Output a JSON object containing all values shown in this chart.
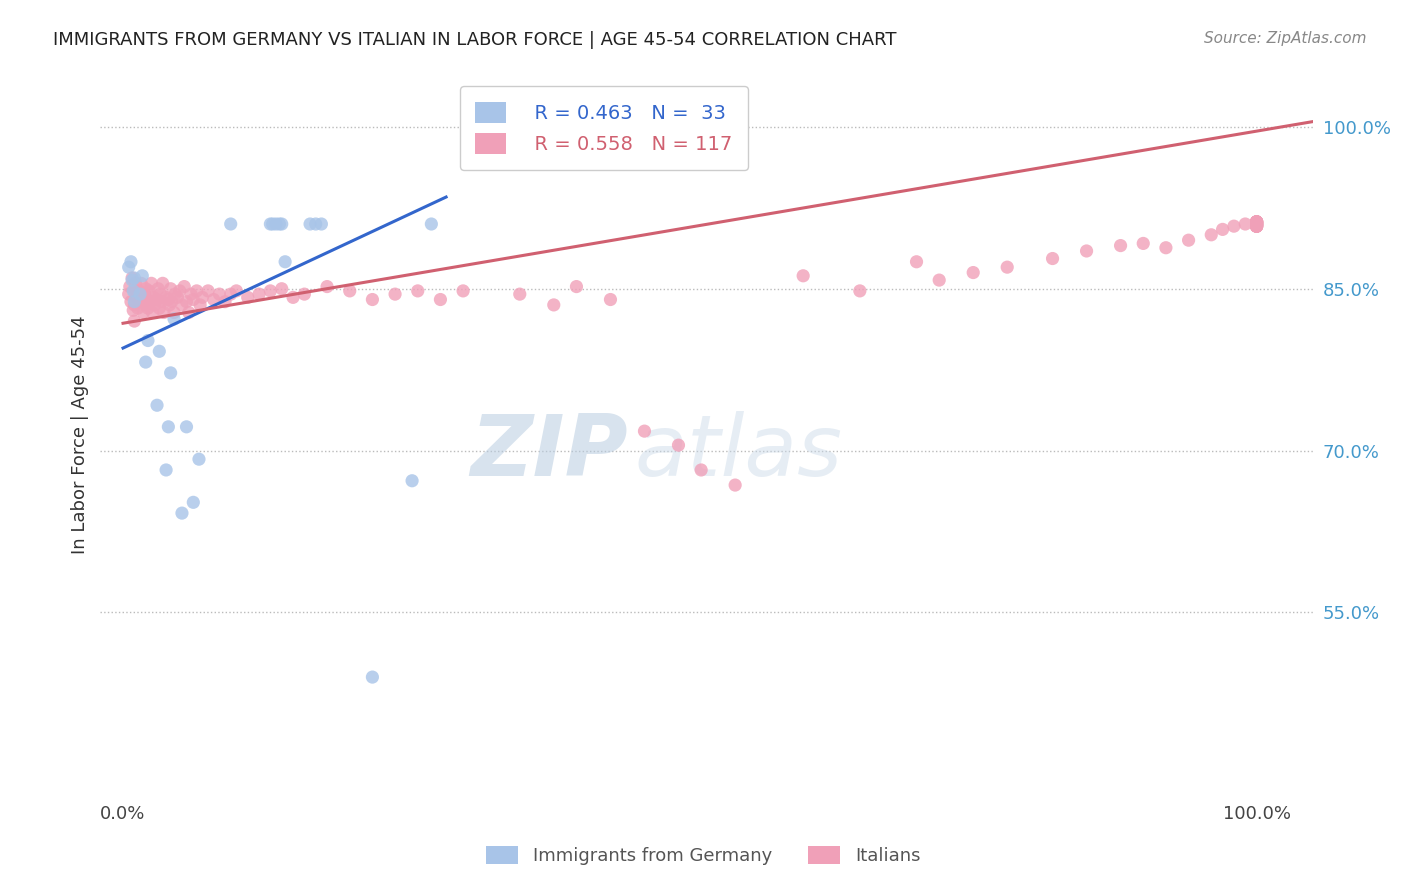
{
  "title": "IMMIGRANTS FROM GERMANY VS ITALIAN IN LABOR FORCE | AGE 45-54 CORRELATION CHART",
  "source": "Source: ZipAtlas.com",
  "ylabel": "In Labor Force | Age 45-54",
  "xlim": [
    -0.02,
    1.05
  ],
  "ylim": [
    0.38,
    1.05
  ],
  "ytick_labels": [
    "55.0%",
    "70.0%",
    "85.0%",
    "100.0%"
  ],
  "ytick_values": [
    0.55,
    0.7,
    0.85,
    1.0
  ],
  "xtick_labels": [
    "0.0%",
    "100.0%"
  ],
  "xtick_values": [
    0.0,
    1.0
  ],
  "legend_r_germany": "R = 0.463",
  "legend_n_germany": "N =  33",
  "legend_r_italian": "R = 0.558",
  "legend_n_italian": "N = 117",
  "color_germany": "#a8c4e8",
  "color_italian": "#f0a0b8",
  "trendline_color_germany": "#3366cc",
  "trendline_color_italian": "#d06070",
  "watermark_zip": "ZIP",
  "watermark_atlas": "atlas",
  "background_color": "#ffffff",
  "germany_x": [
    0.005,
    0.007,
    0.008,
    0.009,
    0.01,
    0.01,
    0.015,
    0.017,
    0.02,
    0.022,
    0.03,
    0.032,
    0.038,
    0.04,
    0.042,
    0.045,
    0.052,
    0.056,
    0.062,
    0.067,
    0.095,
    0.13,
    0.132,
    0.135,
    0.138,
    0.14,
    0.143,
    0.165,
    0.17,
    0.175,
    0.22,
    0.255,
    0.272
  ],
  "germany_y": [
    0.87,
    0.875,
    0.858,
    0.848,
    0.838,
    0.86,
    0.845,
    0.862,
    0.782,
    0.802,
    0.742,
    0.792,
    0.682,
    0.722,
    0.772,
    0.822,
    0.642,
    0.722,
    0.652,
    0.692,
    0.91,
    0.91,
    0.91,
    0.91,
    0.91,
    0.91,
    0.875,
    0.91,
    0.91,
    0.91,
    0.49,
    0.672,
    0.91
  ],
  "italian_x": [
    0.005,
    0.006,
    0.007,
    0.008,
    0.009,
    0.01,
    0.01,
    0.01,
    0.011,
    0.012,
    0.013,
    0.014,
    0.015,
    0.016,
    0.017,
    0.018,
    0.019,
    0.02,
    0.02,
    0.021,
    0.022,
    0.023,
    0.024,
    0.025,
    0.026,
    0.027,
    0.028,
    0.03,
    0.031,
    0.032,
    0.033,
    0.034,
    0.035,
    0.036,
    0.038,
    0.04,
    0.041,
    0.042,
    0.043,
    0.045,
    0.046,
    0.048,
    0.05,
    0.052,
    0.054,
    0.056,
    0.058,
    0.06,
    0.062,
    0.065,
    0.068,
    0.07,
    0.075,
    0.08,
    0.085,
    0.09,
    0.095,
    0.1,
    0.11,
    0.12,
    0.13,
    0.14,
    0.15,
    0.16,
    0.18,
    0.2,
    0.22,
    0.24,
    0.26,
    0.28,
    0.3,
    0.35,
    0.38,
    0.4,
    0.43,
    0.46,
    0.49,
    0.51,
    0.54,
    0.6,
    0.65,
    0.7,
    0.72,
    0.75,
    0.78,
    0.82,
    0.85,
    0.88,
    0.9,
    0.92,
    0.94,
    0.96,
    0.97,
    0.98,
    0.99,
    1.0,
    1.0,
    1.0,
    1.0,
    1.0,
    1.0,
    1.0,
    1.0,
    1.0,
    1.0,
    1.0,
    1.0,
    1.0,
    1.0,
    1.0,
    1.0,
    1.0,
    1.0,
    1.0,
    1.0,
    1.0,
    1.0,
    1.0,
    1.0,
    1.0,
    1.0,
    1.0
  ],
  "italian_y": [
    0.845,
    0.852,
    0.838,
    0.86,
    0.83,
    0.848,
    0.82,
    0.835,
    0.855,
    0.842,
    0.832,
    0.848,
    0.84,
    0.855,
    0.838,
    0.828,
    0.845,
    0.835,
    0.85,
    0.84,
    0.832,
    0.848,
    0.838,
    0.855,
    0.828,
    0.842,
    0.835,
    0.84,
    0.85,
    0.832,
    0.845,
    0.838,
    0.855,
    0.828,
    0.842,
    0.84,
    0.835,
    0.85,
    0.838,
    0.828,
    0.845,
    0.842,
    0.848,
    0.835,
    0.852,
    0.838,
    0.828,
    0.845,
    0.84,
    0.848,
    0.835,
    0.842,
    0.848,
    0.84,
    0.845,
    0.838,
    0.845,
    0.848,
    0.842,
    0.845,
    0.848,
    0.85,
    0.842,
    0.845,
    0.852,
    0.848,
    0.84,
    0.845,
    0.848,
    0.84,
    0.848,
    0.845,
    0.835,
    0.852,
    0.84,
    0.718,
    0.705,
    0.682,
    0.668,
    0.862,
    0.848,
    0.875,
    0.858,
    0.865,
    0.87,
    0.878,
    0.885,
    0.89,
    0.892,
    0.888,
    0.895,
    0.9,
    0.905,
    0.908,
    0.91,
    0.91,
    0.912,
    0.91,
    0.908,
    0.912,
    0.91,
    0.908,
    0.912,
    0.91,
    0.908,
    0.912,
    0.91,
    0.908,
    0.912,
    0.91,
    0.908,
    0.912,
    0.91,
    0.908,
    0.912,
    0.91,
    0.908,
    0.912,
    0.91,
    0.908,
    0.912,
    0.91
  ]
}
